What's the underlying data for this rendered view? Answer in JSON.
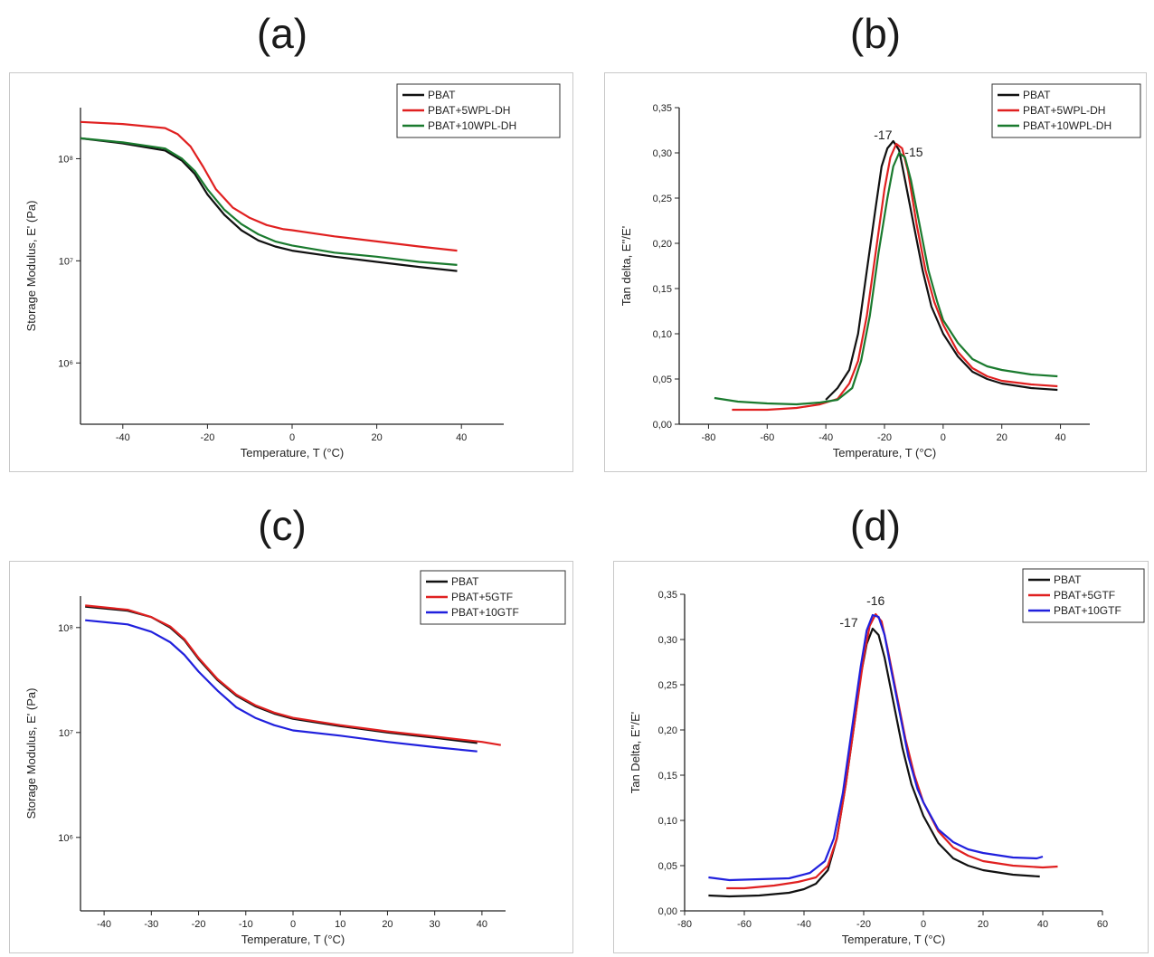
{
  "chart_data": [
    {
      "panel": "(a)",
      "type": "line",
      "xlabel": "Temperature, T (°C)",
      "ylabel": "Storage Modulus, E' (Pa)",
      "xlim": [
        -50,
        50
      ],
      "ylim_log10": [
        5.4,
        8.5
      ],
      "yscale": "log",
      "xticks": [
        -40,
        -20,
        0,
        20,
        40
      ],
      "yticks": [
        {
          "v": 6,
          "label": "10⁶"
        },
        {
          "v": 7,
          "label": "10⁷"
        },
        {
          "v": 8,
          "label": "10⁸"
        }
      ],
      "legend_position": "top-right",
      "series": [
        {
          "name": "PBAT",
          "color": "#111111",
          "x": [
            -50,
            -40,
            -30,
            -26,
            -23,
            -20,
            -16,
            -12,
            -8,
            -4,
            0,
            10,
            20,
            30,
            39
          ],
          "y_log10": [
            8.2,
            8.15,
            8.08,
            7.98,
            7.85,
            7.65,
            7.45,
            7.3,
            7.2,
            7.14,
            7.1,
            7.04,
            6.99,
            6.94,
            6.9
          ]
        },
        {
          "name": "PBAT+5WPL-DH",
          "color": "#e02020",
          "x": [
            -50,
            -40,
            -30,
            -27,
            -24,
            -21,
            -18,
            -14,
            -10,
            -6,
            -2,
            0,
            10,
            20,
            30,
            39
          ],
          "y_log10": [
            8.36,
            8.34,
            8.3,
            8.24,
            8.12,
            7.92,
            7.7,
            7.52,
            7.42,
            7.35,
            7.31,
            7.3,
            7.24,
            7.19,
            7.14,
            7.1
          ]
        },
        {
          "name": "PBAT+10WPL-DH",
          "color": "#1a7a2e",
          "x": [
            -50,
            -40,
            -30,
            -26,
            -23,
            -20,
            -16,
            -12,
            -8,
            -4,
            0,
            10,
            20,
            30,
            39
          ],
          "y_log10": [
            8.2,
            8.16,
            8.1,
            8.0,
            7.88,
            7.7,
            7.5,
            7.36,
            7.26,
            7.19,
            7.15,
            7.08,
            7.04,
            6.99,
            6.96
          ]
        }
      ]
    },
    {
      "panel": "(b)",
      "type": "line",
      "xlabel": "Temperature, T (°C)",
      "ylabel": "Tan delta, E''/E'",
      "xlim": [
        -90,
        50
      ],
      "ylim": [
        0,
        0.35
      ],
      "xticks": [
        -80,
        -60,
        -40,
        -20,
        0,
        20,
        40
      ],
      "yticks": [
        {
          "v": 0,
          "label": "0,00"
        },
        {
          "v": 0.05,
          "label": "0,05"
        },
        {
          "v": 0.1,
          "label": "0,10"
        },
        {
          "v": 0.15,
          "label": "0,15"
        },
        {
          "v": 0.2,
          "label": "0,20"
        },
        {
          "v": 0.25,
          "label": "0,25"
        },
        {
          "v": 0.3,
          "label": "0,30"
        },
        {
          "v": 0.35,
          "label": "0,35"
        }
      ],
      "legend_position": "top-right",
      "annotations": [
        {
          "text": "-17",
          "x": -20.5,
          "y": 0.315
        },
        {
          "text": "-15",
          "x": -10,
          "y": 0.296
        }
      ],
      "series": [
        {
          "name": "PBAT",
          "color": "#111111",
          "x": [
            -40,
            -36,
            -32,
            -29,
            -26,
            -23,
            -21,
            -19,
            -17,
            -15,
            -13,
            -10,
            -7,
            -4,
            0,
            5,
            10,
            15,
            20,
            30,
            39
          ],
          "y": [
            0.027,
            0.04,
            0.06,
            0.1,
            0.17,
            0.24,
            0.285,
            0.305,
            0.313,
            0.303,
            0.27,
            0.22,
            0.17,
            0.13,
            0.1,
            0.075,
            0.058,
            0.05,
            0.045,
            0.04,
            0.038
          ]
        },
        {
          "name": "PBAT+5WPL-DH",
          "color": "#e02020",
          "x": [
            -72,
            -60,
            -50,
            -42,
            -36,
            -32,
            -29,
            -26,
            -23,
            -20,
            -18,
            -16,
            -14,
            -12,
            -9,
            -6,
            -3,
            0,
            5,
            10,
            15,
            20,
            30,
            39
          ],
          "y": [
            0.016,
            0.016,
            0.018,
            0.022,
            0.028,
            0.045,
            0.07,
            0.12,
            0.19,
            0.26,
            0.295,
            0.31,
            0.305,
            0.28,
            0.22,
            0.17,
            0.135,
            0.11,
            0.08,
            0.062,
            0.053,
            0.048,
            0.044,
            0.042
          ]
        },
        {
          "name": "PBAT+10WPL-DH",
          "color": "#1a7a2e",
          "x": [
            -78,
            -70,
            -60,
            -50,
            -42,
            -36,
            -31,
            -28,
            -25,
            -22,
            -19,
            -17,
            -15,
            -13,
            -11,
            -8,
            -5,
            -2,
            0,
            5,
            10,
            15,
            20,
            30,
            39
          ],
          "y": [
            0.029,
            0.025,
            0.023,
            0.022,
            0.024,
            0.027,
            0.04,
            0.07,
            0.12,
            0.19,
            0.25,
            0.285,
            0.3,
            0.295,
            0.27,
            0.22,
            0.17,
            0.135,
            0.115,
            0.09,
            0.072,
            0.064,
            0.06,
            0.055,
            0.053
          ]
        }
      ]
    },
    {
      "panel": "(c)",
      "type": "line",
      "xlabel": "Temperature, T (°C)",
      "ylabel": "Storage Modulus, E' (Pa)",
      "xlim": [
        -45,
        45
      ],
      "ylim_log10": [
        5.3,
        8.3
      ],
      "yscale": "log",
      "xticks": [
        -40,
        -30,
        -20,
        -10,
        0,
        10,
        20,
        30,
        40
      ],
      "yticks": [
        {
          "v": 6,
          "label": "10⁶"
        },
        {
          "v": 7,
          "label": "10⁷"
        },
        {
          "v": 8,
          "label": "10⁸"
        }
      ],
      "legend_position": "top-right",
      "series": [
        {
          "name": "PBAT",
          "color": "#111111",
          "x": [
            -44,
            -35,
            -30,
            -26,
            -23,
            -20,
            -16,
            -12,
            -8,
            -4,
            0,
            10,
            20,
            30,
            39
          ],
          "y_log10": [
            8.2,
            8.16,
            8.1,
            8.0,
            7.88,
            7.7,
            7.5,
            7.35,
            7.25,
            7.18,
            7.13,
            7.06,
            7.0,
            6.95,
            6.9
          ]
        },
        {
          "name": "PBAT+5GTF",
          "color": "#e02020",
          "x": [
            -44,
            -35,
            -30,
            -26,
            -23,
            -20,
            -16,
            -12,
            -8,
            -4,
            0,
            10,
            20,
            30,
            40,
            44
          ],
          "y_log10": [
            8.21,
            8.17,
            8.1,
            8.01,
            7.89,
            7.71,
            7.51,
            7.36,
            7.26,
            7.19,
            7.14,
            7.07,
            7.01,
            6.96,
            6.91,
            6.88
          ]
        },
        {
          "name": "PBAT+10GTF",
          "color": "#2020dd",
          "x": [
            -44,
            -35,
            -30,
            -26,
            -23,
            -20,
            -16,
            -12,
            -8,
            -4,
            0,
            10,
            20,
            30,
            39
          ],
          "y_log10": [
            8.07,
            8.03,
            7.96,
            7.86,
            7.74,
            7.58,
            7.4,
            7.24,
            7.14,
            7.07,
            7.02,
            6.97,
            6.91,
            6.86,
            6.82
          ]
        }
      ]
    },
    {
      "panel": "(d)",
      "type": "line",
      "xlabel": "Temperature, T (°C)",
      "ylabel": "Tan Delta, E''/E'",
      "xlim": [
        -80,
        60
      ],
      "ylim": [
        0,
        0.35
      ],
      "xticks": [
        -80,
        -60,
        -40,
        -20,
        0,
        20,
        40,
        60
      ],
      "yticks": [
        {
          "v": 0,
          "label": "0,00"
        },
        {
          "v": 0.05,
          "label": "0,05"
        },
        {
          "v": 0.1,
          "label": "0,10"
        },
        {
          "v": 0.15,
          "label": "0,15"
        },
        {
          "v": 0.2,
          "label": "0,20"
        },
        {
          "v": 0.25,
          "label": "0,25"
        },
        {
          "v": 0.3,
          "label": "0,30"
        },
        {
          "v": 0.35,
          "label": "0,35"
        }
      ],
      "legend_position": "top-right",
      "annotations": [
        {
          "text": "-16",
          "x": -16,
          "y": 0.338
        },
        {
          "text": "-17",
          "x": -25,
          "y": 0.314
        }
      ],
      "series": [
        {
          "name": "PBAT",
          "color": "#111111",
          "x": [
            -72,
            -65,
            -55,
            -45,
            -40,
            -36,
            -32,
            -29,
            -26,
            -23,
            -21,
            -19,
            -17,
            -15,
            -13,
            -10,
            -7,
            -4,
            0,
            5,
            10,
            15,
            20,
            30,
            39
          ],
          "y": [
            0.017,
            0.016,
            0.017,
            0.02,
            0.024,
            0.03,
            0.045,
            0.08,
            0.14,
            0.21,
            0.26,
            0.295,
            0.312,
            0.305,
            0.28,
            0.23,
            0.18,
            0.14,
            0.105,
            0.075,
            0.058,
            0.05,
            0.045,
            0.04,
            0.038
          ]
        },
        {
          "name": "PBAT+5GTF",
          "color": "#e02020",
          "x": [
            -66,
            -60,
            -50,
            -42,
            -36,
            -32,
            -29,
            -26,
            -23,
            -20,
            -18,
            -16,
            -14,
            -12,
            -9,
            -6,
            -3,
            0,
            5,
            10,
            15,
            20,
            30,
            40,
            45
          ],
          "y": [
            0.025,
            0.025,
            0.028,
            0.032,
            0.037,
            0.05,
            0.08,
            0.14,
            0.21,
            0.28,
            0.315,
            0.328,
            0.32,
            0.29,
            0.24,
            0.19,
            0.15,
            0.12,
            0.088,
            0.07,
            0.061,
            0.055,
            0.05,
            0.048,
            0.049
          ]
        },
        {
          "name": "PBAT+10GTF",
          "color": "#2020dd",
          "x": [
            -72,
            -65,
            -55,
            -45,
            -38,
            -33,
            -30,
            -27,
            -24,
            -21,
            -19,
            -17,
            -15,
            -13,
            -11,
            -8,
            -5,
            -2,
            0,
            5,
            10,
            15,
            20,
            30,
            38,
            40
          ],
          "y": [
            0.037,
            0.034,
            0.035,
            0.036,
            0.042,
            0.055,
            0.08,
            0.13,
            0.2,
            0.27,
            0.31,
            0.327,
            0.325,
            0.305,
            0.27,
            0.22,
            0.17,
            0.135,
            0.12,
            0.09,
            0.076,
            0.068,
            0.064,
            0.059,
            0.058,
            0.06
          ]
        }
      ]
    }
  ]
}
